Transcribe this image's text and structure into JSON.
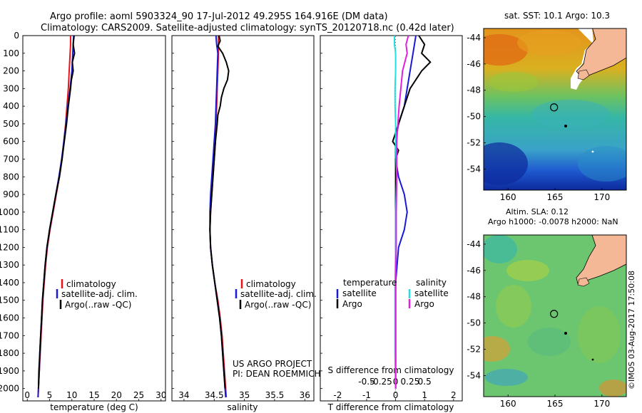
{
  "header": {
    "line1": "Argo profile: aoml 5903324_90 17-Jul-2012 49.295S 164.916E (DM data)",
    "line2": "Climatology: CARS2009. Satellite-adjusted climatology: synTS_20120718.nc (0.42d later)"
  },
  "colors": {
    "climatology": "#e8141b",
    "satellite": "#1a1ad6",
    "argo": "#000000",
    "salinity_sat": "#22e0e0",
    "salinity_argo": "#e020e0",
    "land": "#f4b896"
  },
  "credit": {
    "line1": "US ARGO PROJECT",
    "line2": "PI: DEAN ROEMMICH"
  },
  "watermark": "©IMOS 03-Aug-2017 17:50:08",
  "chart_data": [
    {
      "type": "line",
      "id": "temperature",
      "xlabel": "temperature (deg C)",
      "xlim": [
        -1,
        31
      ],
      "ylim": [
        2070,
        0
      ],
      "xticks": [
        "0",
        "5",
        "10",
        "15",
        "20",
        "25",
        "30"
      ],
      "yticks": [
        "0",
        "100",
        "200",
        "300",
        "400",
        "500",
        "600",
        "700",
        "800",
        "900",
        "1000",
        "1100",
        "1200",
        "1300",
        "1400",
        "1500",
        "1600",
        "1700",
        "1800",
        "1900",
        "2000"
      ],
      "legend": [
        "climatology",
        "satellite-adj. clim.",
        "Argo(..raw -QC)"
      ],
      "series": [
        {
          "name": "climatology",
          "depth": [
            0,
            50,
            100,
            200,
            300,
            400,
            500,
            600,
            700,
            800,
            900,
            1000,
            1100,
            1200,
            1300,
            1400,
            1500,
            1600,
            1700,
            1800,
            1900,
            2000,
            2050
          ],
          "values": [
            9.7,
            9.7,
            9.6,
            9.4,
            9.2,
            8.9,
            8.6,
            8.2,
            7.8,
            7.2,
            6.5,
            5.8,
            5.1,
            4.5,
            4.1,
            3.8,
            3.5,
            3.3,
            3.1,
            2.9,
            2.7,
            2.5,
            2.4
          ]
        },
        {
          "name": "satellite-adj. clim.",
          "depth": [
            0,
            50,
            100,
            200,
            300,
            400,
            500,
            600,
            700,
            800,
            900,
            1000,
            1100,
            1200,
            1300,
            1400,
            1500,
            1600,
            1700,
            1800,
            1900,
            2000,
            2050
          ],
          "values": [
            10.4,
            10.3,
            10.2,
            10.0,
            9.6,
            9.1,
            8.7,
            8.2,
            7.7,
            7.1,
            6.4,
            5.7,
            5.0,
            4.4,
            4.0,
            3.7,
            3.4,
            3.2,
            3.0,
            2.8,
            2.7,
            2.5,
            2.4
          ]
        },
        {
          "name": "Argo",
          "depth": [
            0,
            50,
            100,
            150,
            200,
            250,
            300,
            400,
            500,
            600,
            700,
            800,
            900,
            1000,
            1100,
            1200,
            1300,
            1400,
            1500,
            1600,
            1700,
            1800,
            1900,
            2000
          ],
          "values": [
            10.5,
            10.3,
            10.6,
            10.1,
            10.3,
            9.9,
            9.7,
            9.2,
            8.8,
            8.3,
            7.8,
            7.2,
            6.4,
            5.7,
            5.0,
            4.4,
            4.0,
            3.7,
            3.4,
            3.2,
            3.0,
            2.8,
            2.6,
            2.5
          ]
        }
      ]
    },
    {
      "type": "line",
      "id": "salinity",
      "xlabel": "salinity",
      "xlim": [
        33.8,
        36.15
      ],
      "ylim": [
        2070,
        0
      ],
      "xticks": [
        "34",
        "34.5",
        "35",
        "35.5",
        "36"
      ],
      "legend": [
        "climatology",
        "satellite-adj. clim.",
        "Argo(..raw -QC)"
      ],
      "series": [
        {
          "name": "climatology",
          "depth": [
            0,
            50,
            100,
            200,
            300,
            400,
            500,
            600,
            700,
            800,
            900,
            1000,
            1100,
            1200,
            1300,
            1400,
            1500,
            1600,
            1700,
            1800,
            1900,
            2000,
            2050
          ],
          "values": [
            34.57,
            34.57,
            34.57,
            34.56,
            34.55,
            34.54,
            34.53,
            34.52,
            34.5,
            34.48,
            34.46,
            34.44,
            34.43,
            34.44,
            34.47,
            34.51,
            34.56,
            34.6,
            34.63,
            34.65,
            34.67,
            34.69,
            34.7
          ]
        },
        {
          "name": "satellite-adj. clim.",
          "depth": [
            0,
            50,
            100,
            200,
            300,
            400,
            500,
            600,
            700,
            800,
            900,
            1000,
            1100,
            1200,
            1300,
            1400,
            1500,
            1600,
            1700,
            1800,
            1900,
            2000,
            2050
          ],
          "values": [
            34.53,
            34.54,
            34.56,
            34.55,
            34.54,
            34.53,
            34.52,
            34.5,
            34.48,
            34.46,
            34.44,
            34.43,
            34.43,
            34.44,
            34.47,
            34.51,
            34.55,
            34.59,
            34.62,
            34.64,
            34.66,
            34.68,
            34.69
          ]
        },
        {
          "name": "Argo",
          "depth": [
            0,
            30,
            60,
            100,
            150,
            200,
            250,
            300,
            350,
            400,
            450,
            500,
            600,
            700,
            800,
            900,
            1000,
            1100,
            1200,
            1300,
            1400,
            1500,
            1600,
            1700,
            1800,
            1900,
            2000
          ],
          "values": [
            34.58,
            34.6,
            34.56,
            34.64,
            34.7,
            34.74,
            34.72,
            34.66,
            34.62,
            34.6,
            34.56,
            34.55,
            34.52,
            34.5,
            34.48,
            34.46,
            34.44,
            34.43,
            34.44,
            34.47,
            34.51,
            34.55,
            34.59,
            34.62,
            34.64,
            34.66,
            34.68
          ]
        }
      ]
    },
    {
      "type": "line",
      "id": "differences",
      "xlabel": "T difference from climatology",
      "xlabel2": "S difference from climatology",
      "xlim": [
        -2.6,
        2.3
      ],
      "ylim": [
        2070,
        0
      ],
      "xticks": [
        "-2",
        "-1",
        "0",
        "1",
        "2"
      ],
      "xticks2": [
        "-0.5",
        "-0.25",
        "0",
        "0.25",
        "0.5"
      ],
      "legend_titles": [
        "temperature",
        "salinity"
      ],
      "legend": [
        "satellite",
        "Argo",
        "satellite",
        "Argo"
      ],
      "series": [
        {
          "name": "temperature satellite",
          "depth": [
            0,
            100,
            200,
            300,
            400,
            500,
            600,
            700,
            800,
            900,
            1000,
            1100,
            1200,
            1400,
            1600,
            1800,
            2000
          ],
          "values": [
            0.7,
            0.6,
            0.5,
            0.4,
            0.3,
            0.1,
            0.0,
            0.0,
            0.1,
            0.3,
            0.4,
            0.3,
            0.1,
            0.0,
            0.0,
            0.0,
            0.0
          ]
        },
        {
          "name": "temperature Argo",
          "depth": [
            0,
            50,
            100,
            150,
            200,
            300,
            400,
            500,
            550,
            600,
            650,
            700,
            800,
            900,
            1000,
            1200,
            1400,
            1600,
            1800,
            2000
          ],
          "values": [
            0.8,
            1.0,
            0.9,
            1.2,
            0.9,
            0.5,
            0.3,
            0.1,
            0.0,
            -0.1,
            0.1,
            0.0,
            0.0,
            0.0,
            0.0,
            0.0,
            0.0,
            0.0,
            0.0,
            0.0
          ]
        },
        {
          "name": "salinity satellite",
          "depth": [
            0,
            50,
            100,
            200,
            300,
            400,
            500,
            600,
            800,
            1000,
            1200,
            1400,
            1600,
            1800,
            2000
          ],
          "values": [
            -0.02,
            -0.02,
            0.0,
            0.0,
            -0.01,
            -0.01,
            0.0,
            0.0,
            0.02,
            0.0,
            0.0,
            -0.01,
            -0.01,
            -0.01,
            0.0
          ]
        },
        {
          "name": "salinity Argo",
          "depth": [
            0,
            50,
            100,
            200,
            300,
            400,
            500,
            600,
            800,
            1000,
            1200,
            1400,
            1600,
            1800,
            2000
          ],
          "values": [
            0.22,
            0.18,
            0.2,
            0.12,
            0.09,
            0.06,
            0.04,
            0.02,
            0.02,
            0.01,
            0.01,
            0.0,
            0.0,
            0.0,
            0.0
          ]
        }
      ]
    },
    {
      "type": "heatmap",
      "id": "sst-map",
      "title": "sat. SST: 10.1  Argo: 10.3",
      "xticks": [
        "160",
        "165",
        "170"
      ],
      "yticks": [
        "-44",
        "-46",
        "-48",
        "-50",
        "-52",
        "-54"
      ],
      "marker": {
        "lon": 164.9,
        "lat": -49.3
      }
    },
    {
      "type": "heatmap",
      "id": "sla-map",
      "title": "Altim. SLA: 0.12",
      "subtitle": "Argo h1000: -0.0078  h2000: NaN",
      "xticks": [
        "160",
        "165",
        "170"
      ],
      "yticks": [
        "-44",
        "-46",
        "-48",
        "-50",
        "-52",
        "-54"
      ],
      "marker": {
        "lon": 164.9,
        "lat": -49.3
      }
    }
  ]
}
